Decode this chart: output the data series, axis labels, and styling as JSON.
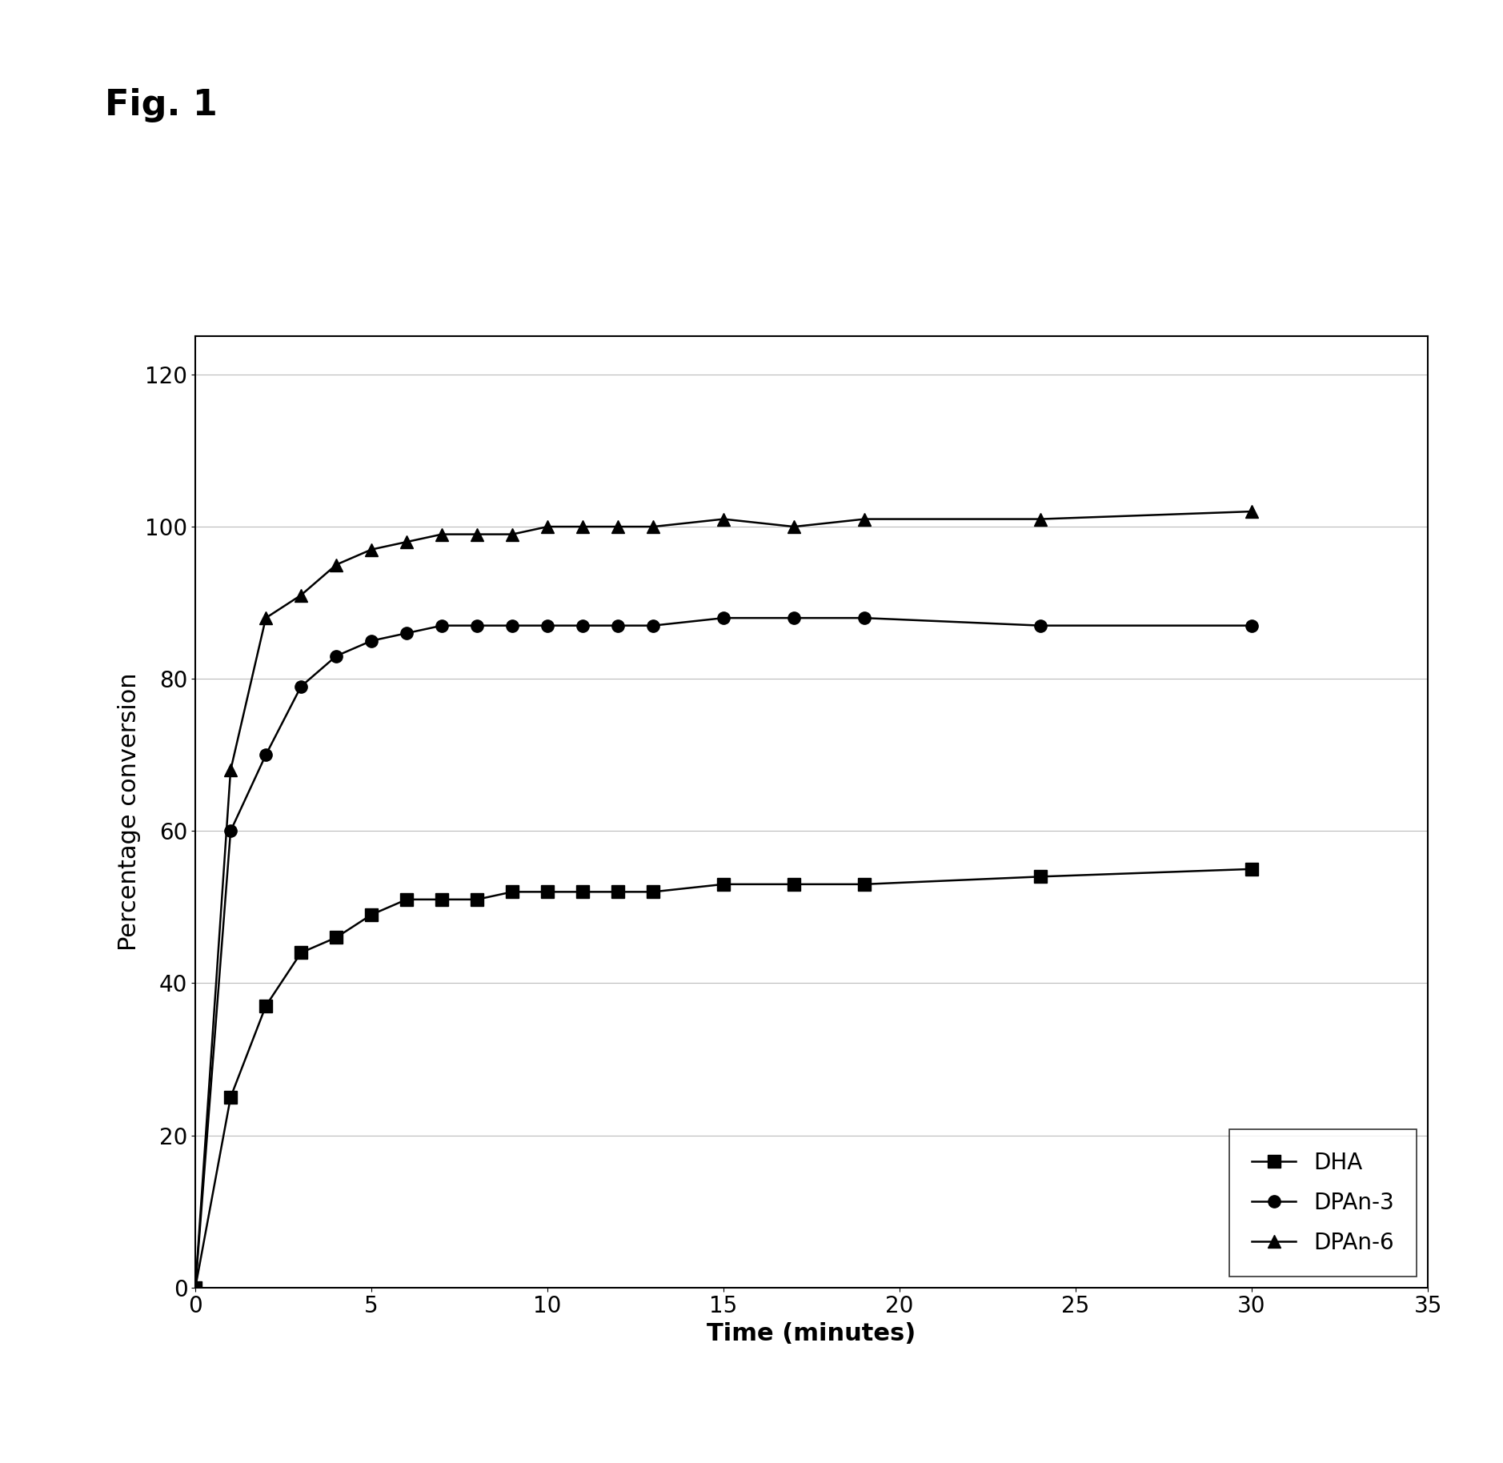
{
  "title": "Fig. 1",
  "xlabel": "Time (minutes)",
  "ylabel": "Percentage conversion",
  "xlim": [
    0,
    35
  ],
  "ylim": [
    0,
    125
  ],
  "yticks": [
    0,
    20,
    40,
    60,
    80,
    100,
    120
  ],
  "xticks": [
    0,
    5,
    10,
    15,
    20,
    25,
    30,
    35
  ],
  "background_color": "#ffffff",
  "series": [
    {
      "label": "DHA",
      "marker": "s",
      "color": "#000000",
      "x": [
        0,
        1,
        2,
        3,
        4,
        5,
        6,
        7,
        8,
        9,
        10,
        11,
        12,
        13,
        15,
        17,
        19,
        24,
        30
      ],
      "y": [
        0,
        25,
        37,
        44,
        46,
        49,
        51,
        51,
        51,
        52,
        52,
        52,
        52,
        52,
        53,
        53,
        53,
        54,
        55
      ]
    },
    {
      "label": "DPAn-3",
      "marker": "o",
      "color": "#000000",
      "x": [
        0,
        1,
        2,
        3,
        4,
        5,
        6,
        7,
        8,
        9,
        10,
        11,
        12,
        13,
        15,
        17,
        19,
        24,
        30
      ],
      "y": [
        0,
        60,
        70,
        79,
        83,
        85,
        86,
        87,
        87,
        87,
        87,
        87,
        87,
        87,
        88,
        88,
        88,
        87,
        87
      ]
    },
    {
      "label": "DPAn-6",
      "marker": "^",
      "color": "#000000",
      "x": [
        0,
        1,
        2,
        3,
        4,
        5,
        6,
        7,
        8,
        9,
        10,
        11,
        12,
        13,
        15,
        17,
        19,
        24,
        30
      ],
      "y": [
        0,
        68,
        88,
        91,
        95,
        97,
        98,
        99,
        99,
        99,
        100,
        100,
        100,
        100,
        101,
        100,
        101,
        101,
        102
      ]
    }
  ],
  "legend_loc": "lower right",
  "markersize": 11,
  "linewidth": 1.8,
  "title_fontsize": 32,
  "axis_label_fontsize": 22,
  "tick_fontsize": 20,
  "legend_fontsize": 20
}
